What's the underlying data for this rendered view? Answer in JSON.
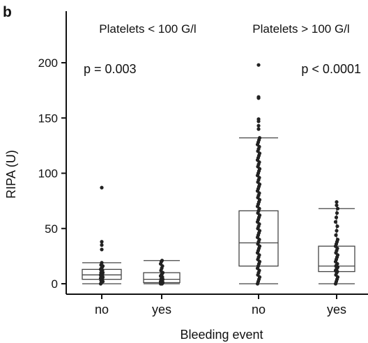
{
  "panel_label": "b",
  "chart_data": {
    "type": "boxplot",
    "title": "",
    "xlabel": "Bleeding event",
    "ylabel": "RIPA (U)",
    "ylim": [
      -8,
      240
    ],
    "yticks": [
      0,
      50,
      100,
      150,
      200
    ],
    "categories": [
      "no",
      "yes",
      "no",
      "yes"
    ],
    "groups": [
      {
        "label": "Platelets < 100 G/l",
        "p_value": "p = 0.003",
        "categories": [
          0,
          1
        ]
      },
      {
        "label": "Platelets > 100 G/l",
        "p_value": "p < 0.0001",
        "categories": [
          2,
          3
        ]
      }
    ],
    "boxes": [
      {
        "category": "no",
        "whisker_low": 0,
        "q1": 4,
        "median": 8,
        "q3": 13,
        "whisker_high": 19,
        "outliers": [
          38,
          35,
          31,
          87
        ],
        "points": [
          0,
          1,
          2,
          2,
          3,
          4,
          4,
          5,
          5,
          6,
          6,
          7,
          7,
          8,
          8,
          9,
          9,
          10,
          10,
          11,
          12,
          13,
          14,
          15,
          16,
          17,
          19
        ]
      },
      {
        "category": "yes",
        "whisker_low": 0,
        "q1": 1,
        "median": 4,
        "q3": 10,
        "whisker_high": 21,
        "outliers": [],
        "points": [
          0,
          0,
          0,
          1,
          1,
          1,
          2,
          2,
          3,
          3,
          4,
          4,
          5,
          6,
          7,
          8,
          9,
          10,
          12,
          14,
          16,
          18,
          20,
          21
        ]
      },
      {
        "category": "no",
        "whisker_low": 0,
        "q1": 16,
        "median": 37,
        "q3": 66,
        "whisker_high": 132,
        "outliers": [
          140,
          143,
          147,
          149,
          168,
          169,
          198
        ],
        "points": [
          0,
          2,
          4,
          6,
          8,
          10,
          12,
          14,
          16,
          18,
          20,
          22,
          24,
          26,
          28,
          30,
          32,
          34,
          36,
          38,
          40,
          42,
          44,
          46,
          48,
          50,
          52,
          54,
          56,
          58,
          60,
          62,
          64,
          66,
          68,
          70,
          72,
          74,
          76,
          78,
          80,
          82,
          84,
          86,
          88,
          90,
          92,
          94,
          96,
          98,
          100,
          102,
          104,
          106,
          108,
          110,
          112,
          114,
          116,
          118,
          120,
          122,
          124,
          126,
          128,
          130,
          132
        ]
      },
      {
        "category": "yes",
        "whisker_low": 0,
        "q1": 11,
        "median": 16,
        "q3": 34,
        "whisker_high": 68,
        "outliers": [
          74,
          71
        ],
        "points": [
          0,
          2,
          4,
          6,
          8,
          10,
          11,
          12,
          13,
          14,
          15,
          16,
          17,
          18,
          20,
          22,
          24,
          26,
          28,
          30,
          32,
          34,
          36,
          38,
          40,
          44,
          48,
          52,
          56,
          60,
          64,
          68
        ]
      }
    ],
    "grid": false,
    "colors": {
      "box": "#444444",
      "point": "#222222",
      "axis": "#111111"
    }
  }
}
